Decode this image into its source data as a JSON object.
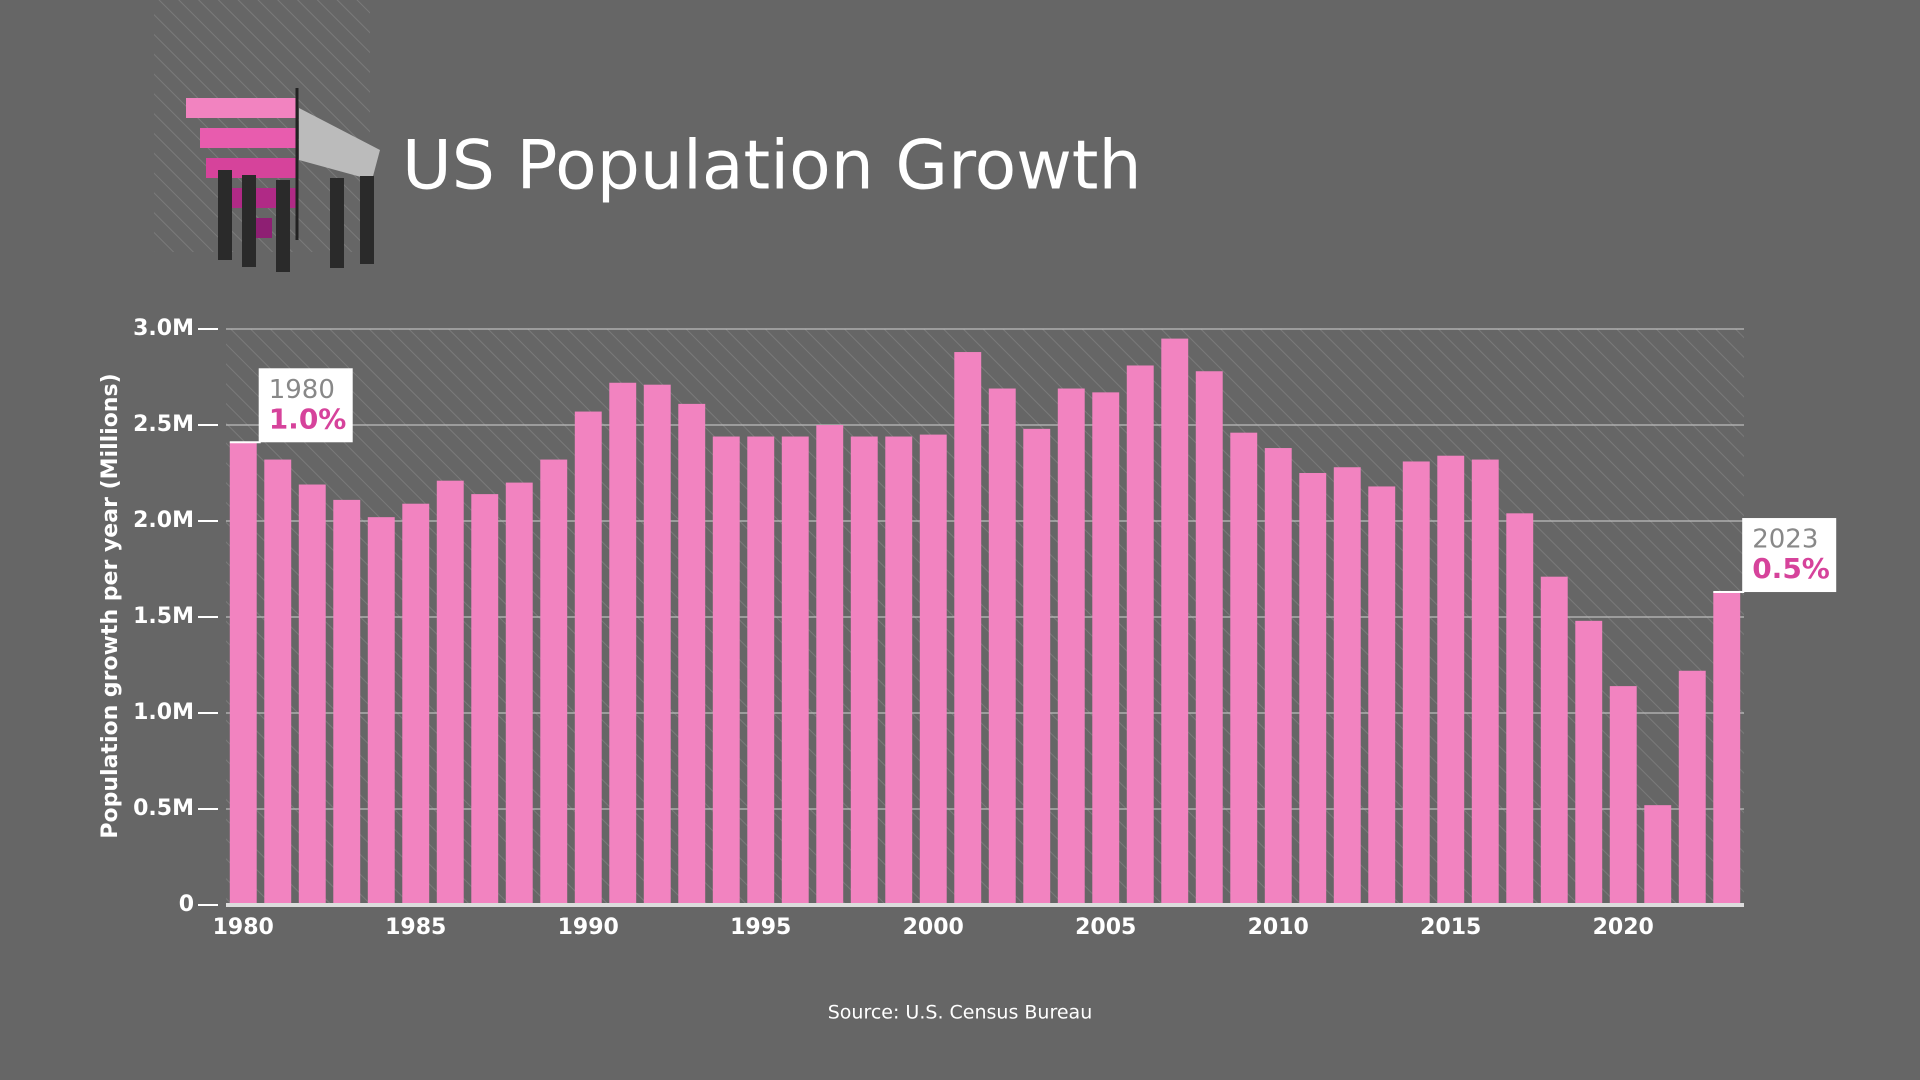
{
  "chart_data": {
    "type": "bar",
    "title": "US Population Growth",
    "ylabel": "Population growth per year (Millions)",
    "source": "Source: U.S. Census Bureau",
    "categories": [
      1980,
      null,
      null,
      null,
      null,
      1985,
      null,
      null,
      null,
      null,
      1990,
      null,
      null,
      null,
      null,
      1995,
      null,
      null,
      null,
      null,
      2000,
      null,
      null,
      null,
      null,
      2005,
      null,
      null,
      null,
      null,
      2010,
      null,
      null,
      null,
      null,
      2015,
      null,
      null,
      null,
      null,
      2020,
      null,
      null,
      null
    ],
    "values": [
      2.41,
      2.32,
      2.19,
      2.11,
      2.02,
      2.09,
      2.21,
      2.14,
      2.2,
      2.32,
      2.57,
      2.72,
      2.71,
      2.61,
      2.44,
      2.44,
      2.44,
      2.5,
      2.44,
      2.44,
      2.45,
      2.88,
      2.69,
      2.48,
      2.69,
      2.67,
      2.81,
      2.95,
      2.78,
      2.46,
      2.38,
      2.25,
      2.28,
      2.18,
      2.31,
      2.34,
      2.32,
      2.04,
      1.71,
      1.48,
      1.14,
      0.52,
      1.22,
      1.63
    ],
    "color": "#f283c0",
    "ylim": [
      0,
      3
    ],
    "yticks": [
      0,
      {
        "value": 0.5,
        "label": "0.5M"
      },
      {
        "value": 1,
        "label": "1.0M"
      },
      {
        "value": 1.5,
        "label": "1.5M"
      },
      {
        "value": 2,
        "label": "2.0M"
      },
      {
        "value": 2.5,
        "label": "2.5M"
      },
      {
        "value": 3,
        "label": "3.0M"
      }
    ],
    "grid": true,
    "annotations": [
      {
        "index": 0,
        "year": "1980",
        "text": "1.0%"
      },
      {
        "index": 43,
        "year": "2023",
        "text": "0.5%"
      }
    ]
  }
}
